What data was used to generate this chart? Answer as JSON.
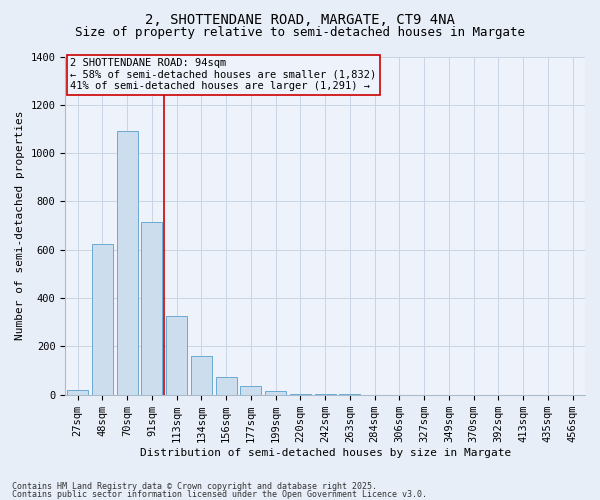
{
  "title_line1": "2, SHOTTENDANE ROAD, MARGATE, CT9 4NA",
  "title_line2": "Size of property relative to semi-detached houses in Margate",
  "xlabel": "Distribution of semi-detached houses by size in Margate",
  "ylabel": "Number of semi-detached properties",
  "annotation_title": "2 SHOTTENDANE ROAD: 94sqm",
  "annotation_line2": "← 58% of semi-detached houses are smaller (1,832)",
  "annotation_line3": "41% of semi-detached houses are larger (1,291) →",
  "footer_line1": "Contains HM Land Registry data © Crown copyright and database right 2025.",
  "footer_line2": "Contains public sector information licensed under the Open Government Licence v3.0.",
  "categories": [
    "27sqm",
    "48sqm",
    "70sqm",
    "91sqm",
    "113sqm",
    "134sqm",
    "156sqm",
    "177sqm",
    "199sqm",
    "220sqm",
    "242sqm",
    "263sqm",
    "284sqm",
    "306sqm",
    "327sqm",
    "349sqm",
    "370sqm",
    "392sqm",
    "413sqm",
    "435sqm",
    "456sqm"
  ],
  "values": [
    20,
    625,
    1090,
    715,
    325,
    160,
    75,
    35,
    15,
    5,
    5,
    5,
    0,
    0,
    0,
    0,
    0,
    0,
    0,
    0,
    0
  ],
  "bar_color": "#ccdded",
  "bar_edge_color": "#6aaad4",
  "grid_color": "#c8d4e4",
  "background_color": "#e8eef8",
  "plot_bg_color": "#eef3fb",
  "vline_x_index": 3.5,
  "vline_color": "#cc0000",
  "ylim": [
    0,
    1400
  ],
  "yticks": [
    0,
    200,
    400,
    600,
    800,
    1000,
    1200,
    1400
  ],
  "annotation_box_color": "#cc0000",
  "title_fontsize": 10,
  "subtitle_fontsize": 9,
  "axis_label_fontsize": 8,
  "tick_fontsize": 7.5,
  "annotation_fontsize": 7.5
}
